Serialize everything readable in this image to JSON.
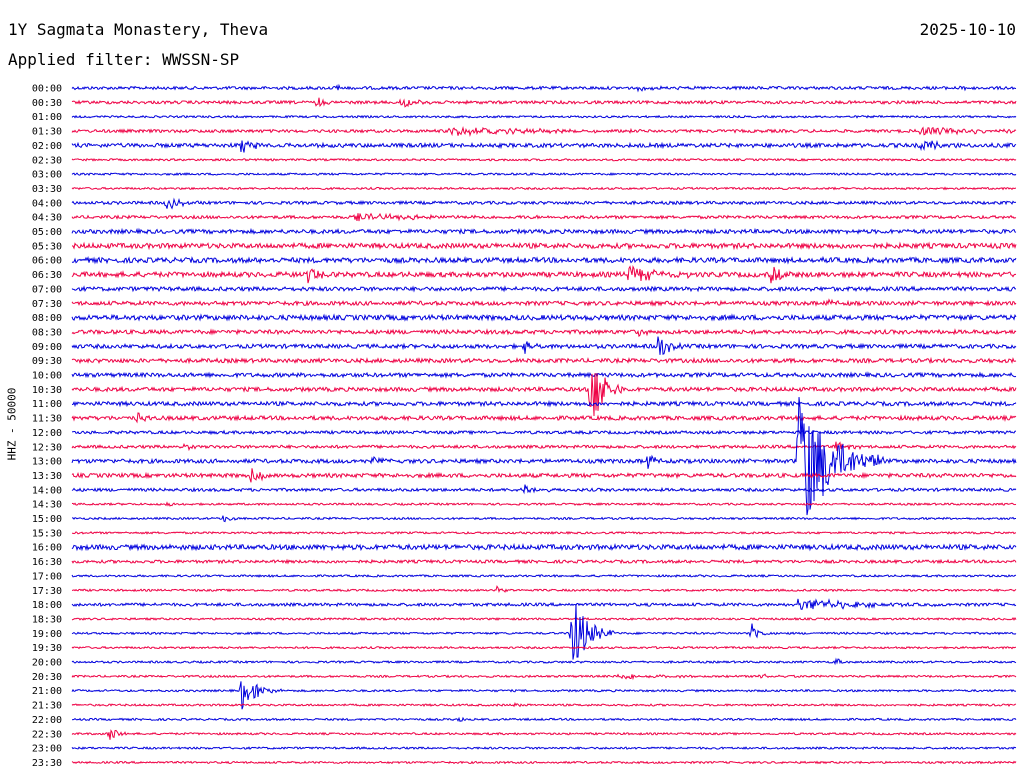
{
  "header": {
    "station": "1Y Sagmata Monastery, Theva",
    "date": "2025-10-10",
    "filter": "Applied filter: WWSSN-SP"
  },
  "chart_data": {
    "type": "line",
    "title": "1Y Sagmata Monastery, Theva",
    "ylabel": "HHZ - 50000",
    "colors": [
      "#0000dd",
      "#ee0044"
    ],
    "row_labels": [
      "00:00",
      "00:30",
      "01:00",
      "01:30",
      "02:00",
      "02:30",
      "03:00",
      "03:30",
      "04:00",
      "04:30",
      "05:00",
      "05:30",
      "06:00",
      "06:30",
      "07:00",
      "07:30",
      "08:00",
      "08:30",
      "09:00",
      "09:30",
      "10:00",
      "10:30",
      "11:00",
      "11:30",
      "12:00",
      "12:30",
      "13:00",
      "13:30",
      "14:00",
      "14:30",
      "15:00",
      "15:30",
      "16:00",
      "16:30",
      "17:00",
      "17:30",
      "18:00",
      "18:30",
      "19:00",
      "19:30",
      "20:00",
      "20:30",
      "21:00",
      "21:30",
      "22:00",
      "22:30",
      "23:00",
      "23:30"
    ],
    "noise_level": [
      1.5,
      1.5,
      1,
      1.5,
      2,
      1,
      1,
      1,
      1.5,
      1.5,
      2,
      2.5,
      2.5,
      2.5,
      2,
      2,
      2.5,
      2,
      2,
      2,
      2,
      2,
      2,
      2,
      1.5,
      1.5,
      2,
      2,
      1.5,
      1,
      1,
      1,
      2.5,
      1.5,
      1,
      1,
      1.5,
      1,
      1,
      1,
      1,
      1,
      1,
      1,
      1,
      1,
      1,
      1
    ],
    "events": [
      {
        "row": 0,
        "t": 0.28,
        "amp": 3,
        "dur": 0.005
      },
      {
        "row": 0,
        "t": 0.6,
        "amp": 2,
        "dur": 0.02
      },
      {
        "row": 0,
        "t": 0.94,
        "amp": 3,
        "dur": 0.005
      },
      {
        "row": 1,
        "t": 0.26,
        "amp": 5,
        "dur": 0.006
      },
      {
        "row": 1,
        "t": 0.35,
        "amp": 7,
        "dur": 0.012
      },
      {
        "row": 3,
        "t": 0.4,
        "amp": 4,
        "dur": 0.08
      },
      {
        "row": 3,
        "t": 0.9,
        "amp": 5,
        "dur": 0.05
      },
      {
        "row": 4,
        "t": 0.18,
        "amp": 9,
        "dur": 0.015
      },
      {
        "row": 4,
        "t": 0.9,
        "amp": 8,
        "dur": 0.015
      },
      {
        "row": 8,
        "t": 0.1,
        "amp": 7,
        "dur": 0.012
      },
      {
        "row": 9,
        "t": 0.3,
        "amp": 3,
        "dur": 0.08
      },
      {
        "row": 12,
        "t": 0.78,
        "amp": 4,
        "dur": 0.008
      },
      {
        "row": 13,
        "t": 0.25,
        "amp": 9,
        "dur": 0.01
      },
      {
        "row": 13,
        "t": 0.59,
        "amp": 8,
        "dur": 0.03
      },
      {
        "row": 13,
        "t": 0.74,
        "amp": 9,
        "dur": 0.01
      },
      {
        "row": 15,
        "t": 0.8,
        "amp": 4,
        "dur": 0.01
      },
      {
        "row": 17,
        "t": 0.6,
        "amp": 4,
        "dur": 0.01
      },
      {
        "row": 18,
        "t": 0.48,
        "amp": 8,
        "dur": 0.006
      },
      {
        "row": 18,
        "t": 0.62,
        "amp": 14,
        "dur": 0.01
      },
      {
        "row": 21,
        "t": 0.55,
        "amp": 50,
        "dur": 0.012
      },
      {
        "row": 23,
        "t": 0.07,
        "amp": 8,
        "dur": 0.006
      },
      {
        "row": 25,
        "t": 0.12,
        "amp": 4,
        "dur": 0.008
      },
      {
        "row": 25,
        "t": 0.81,
        "amp": 6,
        "dur": 0.01
      },
      {
        "row": 26,
        "t": 0.32,
        "amp": 5,
        "dur": 0.006
      },
      {
        "row": 26,
        "t": 0.61,
        "amp": 9,
        "dur": 0.008
      },
      {
        "row": 26,
        "t": 0.77,
        "amp": 80,
        "dur": 0.03
      },
      {
        "row": 27,
        "t": 0.19,
        "amp": 7,
        "dur": 0.012
      },
      {
        "row": 28,
        "t": 0.48,
        "amp": 8,
        "dur": 0.01
      },
      {
        "row": 29,
        "t": 0.1,
        "amp": 4,
        "dur": 0.006
      },
      {
        "row": 30,
        "t": 0.16,
        "amp": 4,
        "dur": 0.012
      },
      {
        "row": 35,
        "t": 0.45,
        "amp": 6,
        "dur": 0.006
      },
      {
        "row": 36,
        "t": 0.77,
        "amp": 7,
        "dur": 0.05
      },
      {
        "row": 38,
        "t": 0.53,
        "amp": 40,
        "dur": 0.015
      },
      {
        "row": 38,
        "t": 0.72,
        "amp": 10,
        "dur": 0.008
      },
      {
        "row": 40,
        "t": 0.81,
        "amp": 5,
        "dur": 0.006
      },
      {
        "row": 41,
        "t": 0.58,
        "amp": 3,
        "dur": 0.04
      },
      {
        "row": 41,
        "t": 0.73,
        "amp": 5,
        "dur": 0.012
      },
      {
        "row": 42,
        "t": 0.18,
        "amp": 20,
        "dur": 0.014
      },
      {
        "row": 43,
        "t": 0.47,
        "amp": 3,
        "dur": 0.005
      },
      {
        "row": 44,
        "t": 0.41,
        "amp": 3,
        "dur": 0.005
      },
      {
        "row": 45,
        "t": 0.04,
        "amp": 8,
        "dur": 0.008
      }
    ]
  }
}
